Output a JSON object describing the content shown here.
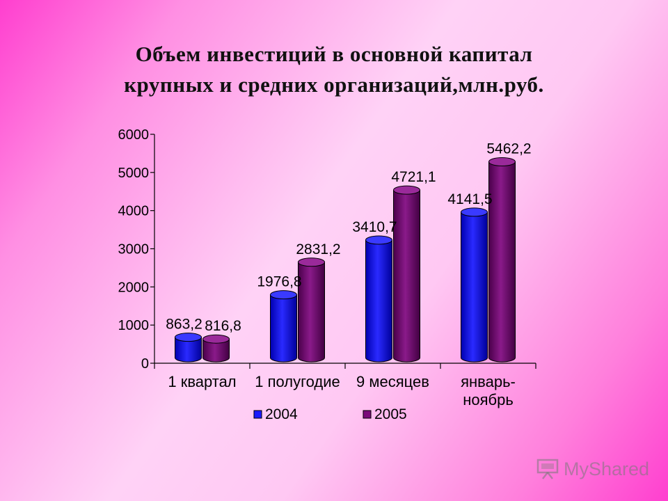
{
  "chart_data": {
    "type": "bar",
    "title": [
      "Объем инвестиций в основной капитал",
      "крупных и средних организаций,млн.руб."
    ],
    "categories": [
      [
        "1 квартал"
      ],
      [
        "1 полугодие"
      ],
      [
        "9 месяцев"
      ],
      [
        "январь-",
        "ноябрь"
      ]
    ],
    "series": [
      {
        "name": "2004",
        "values": [
          863.2,
          1976.8,
          3410.7,
          4141.5
        ],
        "labels": [
          "863,2",
          "1976,8",
          "3410,7",
          "4141,5"
        ]
      },
      {
        "name": "2005",
        "values": [
          816.8,
          2831.2,
          4721.1,
          5462.2
        ],
        "labels": [
          "816,8",
          "2831,2",
          "4721,1",
          "5462,2"
        ]
      }
    ],
    "yticks": [
      "0",
      "1000",
      "2000",
      "3000",
      "4000",
      "5000",
      "6000"
    ],
    "ylim": [
      0,
      6000
    ],
    "legend_placement": "bottom",
    "colors": {
      "2004": "#1a1aff",
      "2005": "#7a0a7a"
    },
    "xlabel": "",
    "ylabel": ""
  },
  "watermark": {
    "text": "MyShared",
    "icon": "presentation-board-icon"
  }
}
